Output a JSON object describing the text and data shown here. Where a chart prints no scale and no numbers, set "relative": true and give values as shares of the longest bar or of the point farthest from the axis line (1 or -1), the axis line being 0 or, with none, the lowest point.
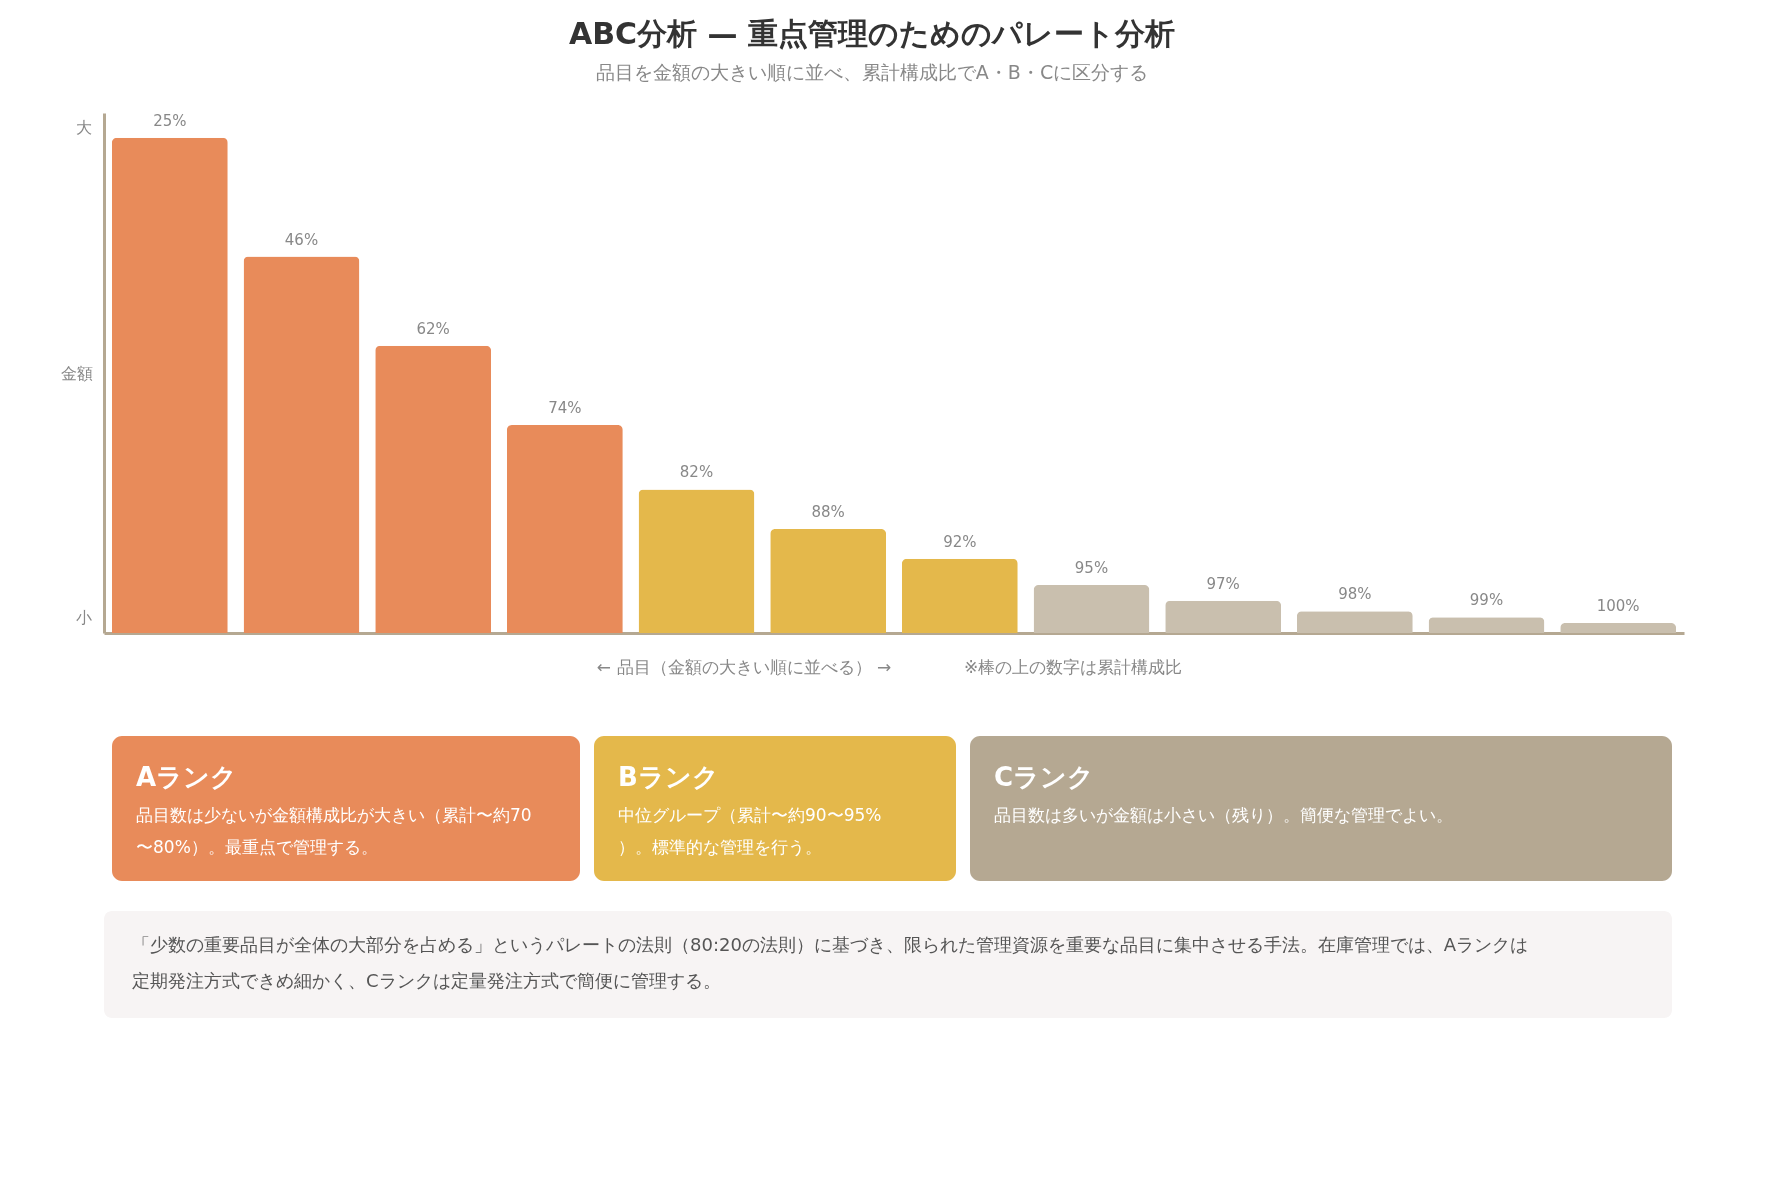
{
  "chart_data": [
    {
      "type": "bar",
      "title": "ABC分析 — 重点管理のためのパレート分析",
      "subtitle": "品目を金額の大きい順に並べ、累計構成比でA・B・Cに区分する",
      "ylabel": "金額",
      "xlabel": "← 品目（金額の大きい順に並べる） →",
      "relative": true,
      "categories": [
        null,
        null,
        null,
        null,
        null,
        null,
        null,
        null,
        null,
        null,
        null,
        null
      ],
      "values": [
        1,
        0.76,
        0.58,
        0.42,
        0.29,
        0.21,
        0.15,
        0.097,
        0.065,
        0.044,
        0.032,
        0.02
      ],
      "colors": [
        "#e88b5a",
        "#e88b5a",
        "#e88b5a",
        "#e88b5a",
        "#e4b84b",
        "#e4b84b",
        "#e4b84b",
        "#c9bfae",
        "#c9bfae",
        "#c9bfae",
        "#c9bfae",
        "#c9bfae"
      ],
      "annotations": [
        "大",
        "小",
        "※棒の上の数字は累計構成比",
        {
          "text": "25%",
          "y": 1
        },
        {
          "text": "46%",
          "y": 0.76
        },
        {
          "text": "62%",
          "y": 0.58
        },
        {
          "text": "74%",
          "y": 0.42
        },
        {
          "text": "82%",
          "y": 0.29
        },
        {
          "text": "88%",
          "y": 0.21
        },
        {
          "text": "92%",
          "y": 0.15
        },
        {
          "text": "95%",
          "y": 0.097
        },
        {
          "text": "97%",
          "y": 0.065
        },
        {
          "text": "98%",
          "y": 0.044
        },
        {
          "text": "99%",
          "y": 0.032
        },
        {
          "text": "100%",
          "y": 0.02
        }
      ]
    },
    {
      "type": "other",
      "colors": [
        "#e88b5a",
        "#e4b84b",
        "#b5a892"
      ],
      "annotations": [
        "Aランク",
        "品目数は少ないが金額構成比が大きい（累計〜約70〜80%）。最重点で管理する。",
        "Bランク",
        "中位グループ（累計〜約90〜95%）。標準的な管理を行う。",
        "Cランク",
        "品目数は多いが金額は小さい（残り）。簡便な管理でよい。",
        "「少数の重要品目が全体の大部分を占める」というパレートの法則（80:20の法則）に基づき、限られた管理資源を重要な品目に集中させる手法。在庫管理では、Aランクは定期発注方式できめ細かく、Cランクは定量発注方式で簡便に管理する。"
      ]
    }
  ]
}
